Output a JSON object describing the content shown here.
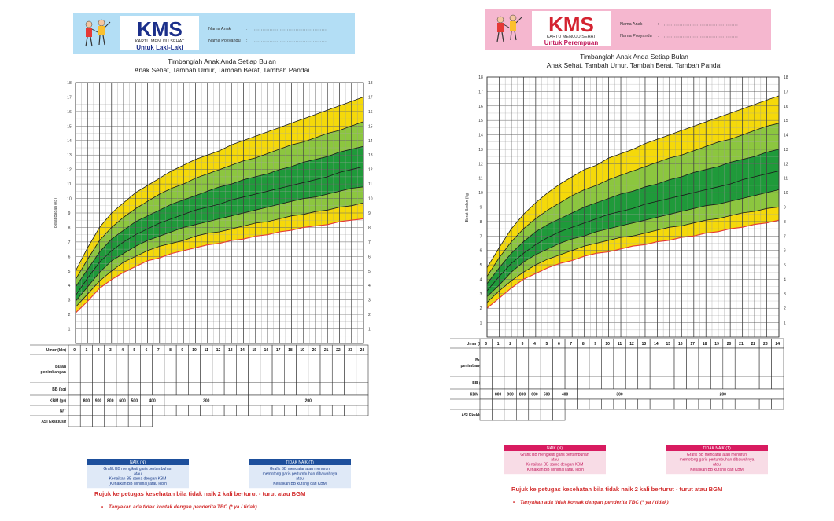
{
  "panels": [
    {
      "id": "boys",
      "header": {
        "logo": "KMS",
        "logo_sub": "KARTU MENUJU SEHAT",
        "subtitle": "Untuk Laki-Laki",
        "field1": "Nama Anak",
        "field2": "Nama Posyandu",
        "bg": "#b3def5",
        "logo_color": "#1b2f8a",
        "sub_color": "#1b2f8a"
      },
      "titles": [
        "Timbanglah Anak Anda Setiap Bulan",
        "Anak Sehat, Tambah Umur, Tambah Berat, Tambah Pandai"
      ],
      "ylabel": "Berat Badan (kg)",
      "row_labels": [
        "Umur (bln)",
        "Bulan penimbangan",
        "BB (kg)",
        "KBM (gr)",
        "N/T",
        "ASI Eksklusif"
      ],
      "kbm": [
        "800",
        "900",
        "800",
        "600",
        "500",
        "400",
        "300",
        "200"
      ],
      "naik": {
        "title": "NAIK (N)",
        "lines": [
          "Grafik BB mengikuti garis pertumbuhan",
          "atau",
          "Kenaikan BB sama dengan KBM",
          "(Kenaikan BB Minimal) atau lebih"
        ],
        "head": "#1d4f9c",
        "body": "#dfe9f7",
        "text": "#1d3f8c"
      },
      "tidak": {
        "title": "TIDAK NAIK (T)",
        "lines": [
          "Grafik BB mendatar atau menurun",
          "memotong garis pertumbuhan dibawahnya",
          "atau",
          "Kenaikan BB kurang dari KBM"
        ],
        "head": "#1d4f9c",
        "body": "#dfe9f7",
        "text": "#1d3f8c"
      },
      "rujuk": "Rujuk ke petugas kesehatan bila tidak naik 2 kali berturut - turut atau BGM",
      "tbc": "Tanyakan ada tidak kontak dengan penderita TBC (* ya / tidak)"
    },
    {
      "id": "girls",
      "header": {
        "logo": "KMS",
        "logo_sub": "KARTU MENUJU SEHAT",
        "subtitle": "Untuk Perempuan",
        "field1": "Nama Anak",
        "field2": "Nama Posyandu",
        "bg": "#f5b7cf",
        "logo_color": "#d42330",
        "sub_color": "#c2185b"
      },
      "titles": [
        "Timbanglah Anak Anda Setiap Bulan",
        "Anak Sehat, Tambah Umur, Tambah Berat, Tambah Pandai"
      ],
      "ylabel": "Berat Badan (kg)",
      "row_labels": [
        "Umur (bln)",
        "Bulan penimbangan",
        "BB (kg)",
        "KBM (gr)",
        "N/T",
        "ASI Eksklusif"
      ],
      "kbm": [
        "800",
        "900",
        "800",
        "600",
        "500",
        "400",
        "300",
        "200"
      ],
      "naik": {
        "title": "NAIK (N)",
        "lines": [
          "Grafik BB mengikuti garis pertumbuhan",
          "atau",
          "Kenaikan BB sama dengan KBM",
          "(Kenaikan BB Minimal) atau lebih"
        ],
        "head": "#d81b60",
        "body": "#f8dce6",
        "text": "#c2185b"
      },
      "tidak": {
        "title": "TIDAK NAIK (T)",
        "lines": [
          "Grafik BB mendatar atau menurun",
          "memotong garis pertumbuhan dibawahnya",
          "atau",
          "Kenaikan BB kurang dari KBM"
        ],
        "head": "#d81b60",
        "body": "#f8dce6",
        "text": "#c2185b"
      },
      "rujuk": "Rujuk ke petugas kesehatan bila tidak naik 2 kali berturut - turut atau BGM",
      "tbc": "Tanyakan ada tidak kontak dengan penderita TBC (* ya / tidak)"
    }
  ],
  "colors": {
    "yellow": "#f5d90a",
    "light_green": "#8cc63f",
    "dark_green": "#1f9a3a",
    "red_line": "#e53935",
    "rujuk_red": "#d32f2f"
  },
  "chart_data": [
    {
      "type": "line",
      "xlabel": "Umur (bln)",
      "ylabel": "Berat Badan (kg)",
      "xlim": [
        0,
        24
      ],
      "ylim": [
        0,
        18
      ],
      "x": [
        0,
        1,
        2,
        3,
        4,
        5,
        6,
        7,
        8,
        9,
        10,
        11,
        12,
        13,
        14,
        15,
        16,
        17,
        18,
        19,
        20,
        21,
        22,
        23,
        24
      ],
      "series": [
        {
          "values": [
            2.1,
            2.9,
            3.8,
            4.4,
            4.9,
            5.3,
            5.7,
            5.9,
            6.2,
            6.4,
            6.6,
            6.8,
            6.9,
            7.1,
            7.2,
            7.4,
            7.5,
            7.7,
            7.8,
            8.0,
            8.1,
            8.2,
            8.4,
            8.5,
            8.6
          ]
        },
        {
          "values": [
            2.5,
            3.4,
            4.3,
            5.0,
            5.6,
            6.0,
            6.4,
            6.7,
            6.9,
            7.1,
            7.4,
            7.6,
            7.7,
            7.9,
            8.1,
            8.3,
            8.4,
            8.6,
            8.8,
            8.9,
            9.1,
            9.2,
            9.4,
            9.5,
            9.7
          ]
        },
        {
          "values": [
            2.9,
            3.9,
            4.9,
            5.7,
            6.2,
            6.7,
            7.1,
            7.4,
            7.7,
            8.0,
            8.2,
            8.4,
            8.6,
            8.8,
            9.0,
            9.2,
            9.4,
            9.6,
            9.8,
            10.0,
            10.1,
            10.3,
            10.5,
            10.7,
            10.8
          ]
        },
        {
          "values": [
            3.3,
            4.5,
            5.6,
            6.4,
            7.0,
            7.5,
            7.9,
            8.3,
            8.6,
            8.9,
            9.2,
            9.4,
            9.6,
            9.9,
            10.1,
            10.3,
            10.5,
            10.7,
            10.9,
            11.1,
            11.3,
            11.5,
            11.8,
            12.0,
            12.2
          ]
        },
        {
          "values": [
            3.9,
            5.1,
            6.3,
            7.2,
            7.8,
            8.4,
            8.8,
            9.2,
            9.6,
            9.9,
            10.2,
            10.5,
            10.8,
            11.0,
            11.3,
            11.5,
            11.7,
            12.0,
            12.2,
            12.5,
            12.7,
            12.9,
            13.2,
            13.4,
            13.6
          ]
        },
        {
          "values": [
            4.4,
            5.8,
            7.1,
            8.0,
            8.7,
            9.3,
            9.8,
            10.3,
            10.7,
            11.0,
            11.4,
            11.7,
            12.0,
            12.3,
            12.6,
            12.8,
            13.1,
            13.4,
            13.7,
            13.9,
            14.2,
            14.5,
            14.7,
            15.0,
            15.3
          ]
        },
        {
          "values": [
            5.0,
            6.6,
            8.0,
            9.0,
            9.7,
            10.4,
            10.9,
            11.4,
            11.9,
            12.3,
            12.7,
            13.0,
            13.3,
            13.7,
            14.0,
            14.3,
            14.6,
            14.9,
            15.2,
            15.5,
            15.8,
            16.1,
            16.4,
            16.7,
            17.0
          ]
        }
      ]
    },
    {
      "type": "line",
      "xlabel": "Umur (bln)",
      "ylabel": "Berat Badan (kg)",
      "xlim": [
        0,
        24
      ],
      "ylim": [
        0,
        18
      ],
      "x": [
        0,
        1,
        2,
        3,
        4,
        5,
        6,
        7,
        8,
        9,
        10,
        11,
        12,
        13,
        14,
        15,
        16,
        17,
        18,
        19,
        20,
        21,
        22,
        23,
        24
      ],
      "series": [
        {
          "values": [
            2.0,
            2.7,
            3.4,
            4.0,
            4.4,
            4.8,
            5.1,
            5.3,
            5.6,
            5.8,
            5.9,
            6.1,
            6.3,
            6.4,
            6.6,
            6.7,
            6.9,
            7.0,
            7.2,
            7.3,
            7.5,
            7.6,
            7.8,
            7.9,
            8.1
          ]
        },
        {
          "values": [
            2.4,
            3.2,
            3.9,
            4.5,
            5.0,
            5.4,
            5.7,
            6.0,
            6.3,
            6.5,
            6.7,
            6.9,
            7.0,
            7.2,
            7.4,
            7.6,
            7.7,
            7.9,
            8.1,
            8.2,
            8.4,
            8.6,
            8.7,
            8.9,
            9.0
          ]
        },
        {
          "values": [
            2.8,
            3.6,
            4.5,
            5.2,
            5.7,
            6.1,
            6.5,
            6.8,
            7.0,
            7.3,
            7.5,
            7.7,
            7.9,
            8.1,
            8.3,
            8.5,
            8.7,
            8.9,
            9.1,
            9.2,
            9.4,
            9.6,
            9.8,
            10.0,
            10.2
          ]
        },
        {
          "values": [
            3.2,
            4.2,
            5.1,
            5.8,
            6.4,
            6.9,
            7.3,
            7.6,
            7.9,
            8.2,
            8.5,
            8.7,
            8.9,
            9.2,
            9.4,
            9.6,
            9.8,
            10.0,
            10.2,
            10.4,
            10.6,
            10.9,
            11.1,
            11.3,
            11.5
          ]
        },
        {
          "values": [
            3.7,
            4.8,
            5.8,
            6.6,
            7.3,
            7.8,
            8.2,
            8.6,
            9.0,
            9.3,
            9.6,
            9.9,
            10.1,
            10.4,
            10.6,
            10.9,
            11.1,
            11.4,
            11.6,
            11.8,
            12.1,
            12.3,
            12.5,
            12.8,
            13.0
          ]
        },
        {
          "values": [
            4.2,
            5.5,
            6.6,
            7.5,
            8.2,
            8.8,
            9.3,
            9.8,
            10.2,
            10.5,
            10.9,
            11.2,
            11.5,
            11.8,
            12.1,
            12.4,
            12.6,
            12.9,
            13.2,
            13.5,
            13.7,
            14.0,
            14.3,
            14.6,
            14.8
          ]
        },
        {
          "values": [
            4.8,
            6.2,
            7.5,
            8.5,
            9.3,
            10.0,
            10.6,
            11.1,
            11.6,
            11.9,
            12.4,
            12.7,
            13.0,
            13.4,
            13.7,
            14.0,
            14.3,
            14.6,
            14.9,
            15.2,
            15.5,
            15.8,
            16.1,
            16.4,
            16.7
          ]
        }
      ]
    }
  ]
}
